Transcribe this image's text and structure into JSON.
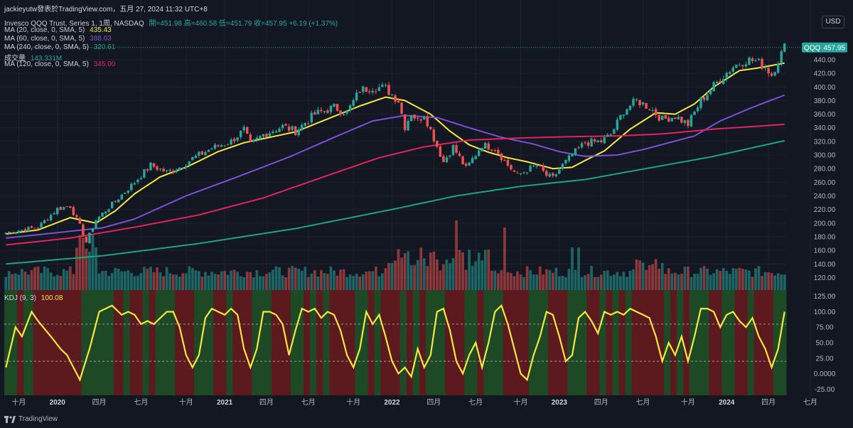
{
  "watermark": "jackieyutw發表於TradingView.com，五月 27, 2024 11:32 UTC+8",
  "legend": {
    "title": "Invesco QQQ Trust, Series 1, 1周, NASDAQ",
    "ohlc": "開=451.98  高=460.58  低=451.79  收=457.95  +6.19 (+1.37%)",
    "ma": [
      {
        "label": "MA (20, close, 0, SMA, 5)",
        "value": "435.43",
        "color": "#f5e642"
      },
      {
        "label": "MA (60, close, 0, SMA, 5)",
        "value": "388.03",
        "color": "#7b4fd6"
      },
      {
        "label": "MA (240, close, 0, SMA, 5)",
        "value": "320.61",
        "color": "#1fa37e"
      }
    ],
    "volume": {
      "label": "成交量",
      "value": "143.331M",
      "color": "#26a69a"
    },
    "ma120": {
      "label": "MA (120, close, 0, SMA, 5)",
      "value": "345.00",
      "color": "#e0245e"
    }
  },
  "kdj_legend": {
    "label": "KDJ (9, 3)",
    "value": "100.08",
    "color": "#f5e642"
  },
  "currency": "USD",
  "last_price": {
    "symbol": "QQQ",
    "value": "457.95"
  },
  "brand": "TradingView",
  "colors": {
    "bg": "#131722",
    "up": "#26a69a",
    "down": "#ef5350",
    "grid": "#1e2230",
    "kdj_bull": "#1d4a25",
    "kdj_bear": "#5c1a1f"
  },
  "chart_data": {
    "type": "candlestick",
    "interval": "weekly",
    "price_axis": {
      "ticks": [
        "120.00",
        "140.00",
        "160.00",
        "180.00",
        "200.00",
        "220.00",
        "240.00",
        "260.00",
        "280.00",
        "300.00",
        "320.00",
        "340.00",
        "360.00",
        "380.00",
        "400.00",
        "420.00",
        "440.00"
      ],
      "ylim": [
        110,
        465
      ]
    },
    "kdj_axis": {
      "ticks": [
        "-25.00",
        "0.0000",
        "25.00",
        "50.00",
        "75.00",
        "100.00",
        "125.00"
      ],
      "ylim": [
        -35,
        135
      ],
      "ref_lines": [
        80,
        20
      ]
    },
    "time_axis": [
      {
        "label": "十月",
        "idx": 4,
        "bold": false
      },
      {
        "label": "2020",
        "idx": 16,
        "bold": true
      },
      {
        "label": "四月",
        "idx": 29,
        "bold": false
      },
      {
        "label": "七月",
        "idx": 42,
        "bold": false
      },
      {
        "label": "十月",
        "idx": 56,
        "bold": false
      },
      {
        "label": "2021",
        "idx": 68,
        "bold": true
      },
      {
        "label": "四月",
        "idx": 81,
        "bold": false
      },
      {
        "label": "七月",
        "idx": 94,
        "bold": false
      },
      {
        "label": "十月",
        "idx": 108,
        "bold": false
      },
      {
        "label": "2022",
        "idx": 120,
        "bold": true
      },
      {
        "label": "四月",
        "idx": 133,
        "bold": false
      },
      {
        "label": "七月",
        "idx": 146,
        "bold": false
      },
      {
        "label": "十月",
        "idx": 160,
        "bold": false
      },
      {
        "label": "2023",
        "idx": 172,
        "bold": true
      },
      {
        "label": "四月",
        "idx": 185,
        "bold": false
      },
      {
        "label": "七月",
        "idx": 198,
        "bold": false
      },
      {
        "label": "十月",
        "idx": 212,
        "bold": false
      },
      {
        "label": "2024",
        "idx": 224,
        "bold": true
      },
      {
        "label": "四月",
        "idx": 237,
        "bold": false
      },
      {
        "label": "七月",
        "idx": 250,
        "bold": false
      }
    ],
    "n_weeks": 243,
    "close_keypoints": [
      [
        0,
        186
      ],
      [
        10,
        194
      ],
      [
        16,
        221
      ],
      [
        20,
        225
      ],
      [
        23,
        196
      ],
      [
        25,
        172
      ],
      [
        28,
        205
      ],
      [
        34,
        232
      ],
      [
        40,
        260
      ],
      [
        45,
        285
      ],
      [
        50,
        275
      ],
      [
        54,
        282
      ],
      [
        58,
        295
      ],
      [
        64,
        310
      ],
      [
        70,
        320
      ],
      [
        74,
        337
      ],
      [
        76,
        315
      ],
      [
        80,
        330
      ],
      [
        86,
        342
      ],
      [
        90,
        335
      ],
      [
        96,
        360
      ],
      [
        102,
        370
      ],
      [
        106,
        362
      ],
      [
        110,
        395
      ],
      [
        114,
        400
      ],
      [
        118,
        398
      ],
      [
        122,
        380
      ],
      [
        124,
        342
      ],
      [
        126,
        362
      ],
      [
        128,
        350
      ],
      [
        130,
        360
      ],
      [
        133,
        325
      ],
      [
        136,
        290
      ],
      [
        139,
        312
      ],
      [
        143,
        280
      ],
      [
        148,
        315
      ],
      [
        152,
        310
      ],
      [
        156,
        285
      ],
      [
        159,
        270
      ],
      [
        162,
        278
      ],
      [
        165,
        285
      ],
      [
        168,
        270
      ],
      [
        170,
        266
      ],
      [
        173,
        285
      ],
      [
        176,
        300
      ],
      [
        180,
        318
      ],
      [
        185,
        320
      ],
      [
        188,
        330
      ],
      [
        192,
        365
      ],
      [
        196,
        380
      ],
      [
        200,
        370
      ],
      [
        204,
        352
      ],
      [
        208,
        357
      ],
      [
        212,
        345
      ],
      [
        216,
        380
      ],
      [
        222,
        412
      ],
      [
        226,
        430
      ],
      [
        230,
        440
      ],
      [
        233,
        438
      ],
      [
        236,
        430
      ],
      [
        238,
        418
      ],
      [
        240,
        440
      ],
      [
        242,
        458
      ]
    ],
    "ma_lines": [
      {
        "name": "MA (20, close, 0, SMA, 5)",
        "color": "#f5e642",
        "points": [
          [
            0,
            184
          ],
          [
            10,
            190
          ],
          [
            20,
            208
          ],
          [
            28,
            200
          ],
          [
            34,
            218
          ],
          [
            40,
            243
          ],
          [
            48,
            268
          ],
          [
            56,
            282
          ],
          [
            66,
            305
          ],
          [
            74,
            318
          ],
          [
            82,
            326
          ],
          [
            90,
            334
          ],
          [
            100,
            353
          ],
          [
            110,
            372
          ],
          [
            118,
            385
          ],
          [
            124,
            380
          ],
          [
            132,
            360
          ],
          [
            138,
            335
          ],
          [
            144,
            315
          ],
          [
            150,
            304
          ],
          [
            156,
            296
          ],
          [
            162,
            290
          ],
          [
            170,
            280
          ],
          [
            176,
            282
          ],
          [
            180,
            292
          ],
          [
            186,
            306
          ],
          [
            194,
            338
          ],
          [
            202,
            362
          ],
          [
            208,
            360
          ],
          [
            214,
            375
          ],
          [
            220,
            400
          ],
          [
            228,
            424
          ],
          [
            234,
            428
          ],
          [
            242,
            435
          ]
        ]
      },
      {
        "name": "MA (60, close, 0, SMA, 5)",
        "color": "#7b4fd6",
        "points": [
          [
            0,
            178
          ],
          [
            20,
            188
          ],
          [
            30,
            193
          ],
          [
            40,
            206
          ],
          [
            56,
            240
          ],
          [
            72,
            268
          ],
          [
            88,
            297
          ],
          [
            104,
            330
          ],
          [
            114,
            350
          ],
          [
            124,
            358
          ],
          [
            134,
            355
          ],
          [
            144,
            340
          ],
          [
            154,
            326
          ],
          [
            164,
            316
          ],
          [
            172,
            305
          ],
          [
            180,
            298
          ],
          [
            190,
            300
          ],
          [
            198,
            308
          ],
          [
            206,
            318
          ],
          [
            214,
            328
          ],
          [
            222,
            350
          ],
          [
            232,
            370
          ],
          [
            242,
            388
          ]
        ]
      },
      {
        "name": "MA (120, close, 0, SMA, 5)",
        "color": "#e0245e",
        "points": [
          [
            0,
            168
          ],
          [
            20,
            178
          ],
          [
            40,
            194
          ],
          [
            60,
            212
          ],
          [
            80,
            237
          ],
          [
            100,
            270
          ],
          [
            116,
            296
          ],
          [
            130,
            312
          ],
          [
            144,
            322
          ],
          [
            160,
            325
          ],
          [
            176,
            327
          ],
          [
            190,
            328
          ],
          [
            204,
            331
          ],
          [
            220,
            338
          ],
          [
            242,
            345
          ]
        ]
      },
      {
        "name": "MA (240, close, 0, SMA, 5)",
        "color": "#1fa37e",
        "points": [
          [
            0,
            140
          ],
          [
            30,
            152
          ],
          [
            60,
            170
          ],
          [
            90,
            192
          ],
          [
            120,
            220
          ],
          [
            140,
            240
          ],
          [
            160,
            254
          ],
          [
            180,
            264
          ],
          [
            200,
            281
          ],
          [
            220,
            298
          ],
          [
            242,
            321
          ]
        ]
      }
    ],
    "kdj_keypoints": [
      [
        0,
        10
      ],
      [
        3,
        75
      ],
      [
        5,
        60
      ],
      [
        8,
        100
      ],
      [
        10,
        85
      ],
      [
        14,
        60
      ],
      [
        17,
        40
      ],
      [
        19,
        30
      ],
      [
        23,
        -10
      ],
      [
        26,
        40
      ],
      [
        29,
        100
      ],
      [
        33,
        110
      ],
      [
        36,
        95
      ],
      [
        38,
        100
      ],
      [
        40,
        95
      ],
      [
        42,
        80
      ],
      [
        44,
        85
      ],
      [
        46,
        80
      ],
      [
        48,
        90
      ],
      [
        50,
        100
      ],
      [
        52,
        100
      ],
      [
        54,
        75
      ],
      [
        56,
        30
      ],
      [
        58,
        10
      ],
      [
        60,
        30
      ],
      [
        62,
        90
      ],
      [
        64,
        105
      ],
      [
        66,
        100
      ],
      [
        68,
        95
      ],
      [
        70,
        105
      ],
      [
        72,
        95
      ],
      [
        74,
        40
      ],
      [
        76,
        10
      ],
      [
        78,
        40
      ],
      [
        80,
        100
      ],
      [
        82,
        100
      ],
      [
        84,
        95
      ],
      [
        86,
        80
      ],
      [
        88,
        30
      ],
      [
        90,
        70
      ],
      [
        92,
        105
      ],
      [
        94,
        100
      ],
      [
        96,
        105
      ],
      [
        98,
        90
      ],
      [
        100,
        100
      ],
      [
        102,
        95
      ],
      [
        104,
        70
      ],
      [
        106,
        30
      ],
      [
        108,
        10
      ],
      [
        110,
        40
      ],
      [
        112,
        100
      ],
      [
        114,
        80
      ],
      [
        116,
        95
      ],
      [
        118,
        60
      ],
      [
        120,
        20
      ],
      [
        122,
        0
      ],
      [
        124,
        10
      ],
      [
        126,
        -5
      ],
      [
        128,
        40
      ],
      [
        130,
        10
      ],
      [
        132,
        30
      ],
      [
        134,
        100
      ],
      [
        136,
        105
      ],
      [
        138,
        70
      ],
      [
        140,
        20
      ],
      [
        142,
        0
      ],
      [
        144,
        30
      ],
      [
        146,
        50
      ],
      [
        148,
        10
      ],
      [
        150,
        50
      ],
      [
        152,
        100
      ],
      [
        154,
        110
      ],
      [
        156,
        80
      ],
      [
        158,
        40
      ],
      [
        160,
        0
      ],
      [
        162,
        -10
      ],
      [
        164,
        30
      ],
      [
        166,
        60
      ],
      [
        168,
        100
      ],
      [
        170,
        95
      ],
      [
        172,
        60
      ],
      [
        174,
        20
      ],
      [
        176,
        30
      ],
      [
        178,
        90
      ],
      [
        180,
        100
      ],
      [
        182,
        85
      ],
      [
        184,
        65
      ],
      [
        186,
        100
      ],
      [
        188,
        95
      ],
      [
        190,
        100
      ],
      [
        192,
        95
      ],
      [
        194,
        105
      ],
      [
        196,
        100
      ],
      [
        198,
        95
      ],
      [
        200,
        90
      ],
      [
        202,
        60
      ],
      [
        204,
        20
      ],
      [
        206,
        50
      ],
      [
        208,
        30
      ],
      [
        210,
        60
      ],
      [
        212,
        20
      ],
      [
        214,
        60
      ],
      [
        216,
        105
      ],
      [
        218,
        105
      ],
      [
        220,
        100
      ],
      [
        222,
        75
      ],
      [
        224,
        95
      ],
      [
        226,
        100
      ],
      [
        228,
        85
      ],
      [
        230,
        75
      ],
      [
        232,
        90
      ],
      [
        234,
        60
      ],
      [
        236,
        40
      ],
      [
        238,
        10
      ],
      [
        240,
        40
      ],
      [
        242,
        100
      ]
    ]
  }
}
